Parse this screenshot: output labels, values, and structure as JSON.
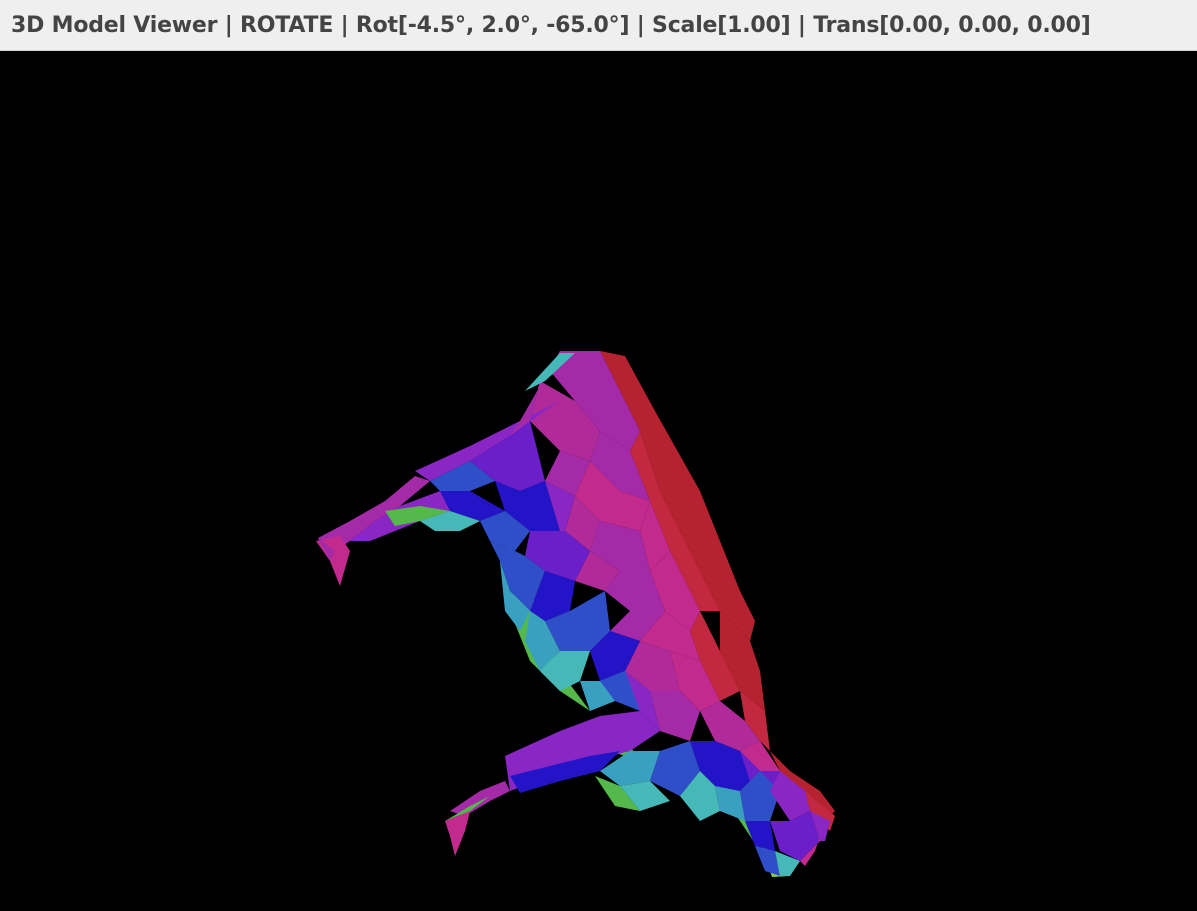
{
  "window": {
    "title": "3D Model Viewer | ROTATE | Rot[-4.5°, 2.0°, -65.0°] | Scale[1.00] | Trans[0.00, 0.00, 0.00]"
  },
  "viewer": {
    "mode": "ROTATE",
    "rotation_deg": [
      -4.5,
      2.0,
      -65.0
    ],
    "scale": 1.0,
    "translation": [
      0.0,
      0.0,
      0.0
    ],
    "background_color": "#000000"
  },
  "model": {
    "shading": "normal-color",
    "palette": {
      "red": "#b52230",
      "crimson": "#c2283f",
      "magenta": "#a52aa8",
      "purple": "#8a27c4",
      "violet": "#6a1fc9",
      "blue": "#2414c8",
      "royal": "#2e4fc7",
      "teal": "#3aa0c0",
      "cyan": "#47b8b8",
      "green": "#55b84a",
      "lime": "#8fd23a"
    }
  }
}
